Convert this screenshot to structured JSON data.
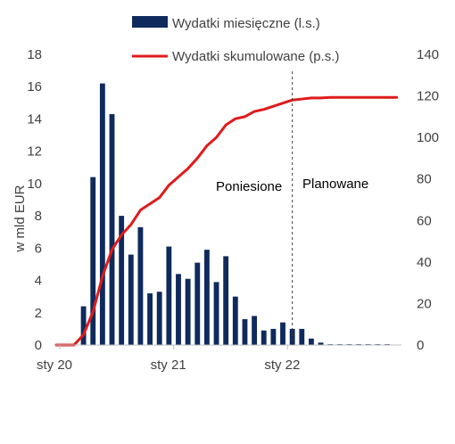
{
  "chart_data": {
    "type": "bar+line",
    "colors": {
      "bars": "#0f2a5c",
      "line": "#e01b1b",
      "axis": "#bfbfbf",
      "text": "#404040",
      "divider": "#404040"
    },
    "legend": [
      {
        "key": "bars",
        "label": "Wydatki miesięczne (l.s.)"
      },
      {
        "key": "line",
        "label": "Wydatki skumulowane (p.s.)"
      }
    ],
    "ylabel_left": "w mld EUR",
    "ylim_left": [
      0,
      18
    ],
    "yticks_left": [
      "0",
      "2",
      "4",
      "6",
      "8",
      "10",
      "12",
      "14",
      "16",
      "18"
    ],
    "ylim_right": [
      0,
      140
    ],
    "yticks_right": [
      "0",
      "20",
      "40",
      "60",
      "80",
      "100",
      "120",
      "140"
    ],
    "x_tick_labels": [
      {
        "label": "sty 20",
        "month_index": 0
      },
      {
        "label": "sty 21",
        "month_index": 12
      },
      {
        "label": "sty 22",
        "month_index": 24
      }
    ],
    "months_total": 36,
    "divider_month": 24.5,
    "annotations": {
      "left": "Poniesione",
      "right": "Planowane"
    },
    "series": [
      {
        "name": "Wydatki miesięczne (l.s.)",
        "kind": "bar",
        "values": [
          0,
          0,
          2.4,
          10.4,
          16.2,
          14.3,
          8.0,
          5.6,
          7.3,
          3.2,
          3.3,
          6.1,
          4.4,
          4.1,
          5.1,
          5.9,
          3.9,
          5.5,
          3.0,
          1.6,
          1.8,
          0.9,
          1.0,
          1.4,
          1.0,
          1.0,
          0.4,
          0.15,
          0.05,
          0.05,
          0.05,
          0.05,
          0.05,
          0.05,
          0.05,
          0
        ]
      },
      {
        "name": "Wydatki skumulowane (p.s.)",
        "kind": "line",
        "points": [
          [
            0,
            0
          ],
          [
            1,
            0
          ],
          [
            2,
            5
          ],
          [
            3,
            16
          ],
          [
            4,
            33
          ],
          [
            5,
            46
          ],
          [
            6,
            53
          ],
          [
            7,
            58
          ],
          [
            8,
            65
          ],
          [
            9,
            68
          ],
          [
            10,
            71
          ],
          [
            11,
            77
          ],
          [
            12,
            81
          ],
          [
            13,
            85
          ],
          [
            14,
            90
          ],
          [
            15,
            96
          ],
          [
            16,
            100
          ],
          [
            17,
            106
          ],
          [
            18,
            109
          ],
          [
            19,
            110
          ],
          [
            20,
            112.5
          ],
          [
            21,
            113.5
          ],
          [
            22,
            115
          ],
          [
            23,
            116.5
          ],
          [
            24,
            118
          ],
          [
            25,
            118.5
          ],
          [
            26,
            119
          ],
          [
            27,
            119
          ],
          [
            28,
            119.3
          ],
          [
            29,
            119.3
          ],
          [
            30,
            119.3
          ],
          [
            31,
            119.3
          ],
          [
            32,
            119.3
          ],
          [
            33,
            119.3
          ],
          [
            34,
            119.3
          ],
          [
            35,
            119.3
          ]
        ]
      }
    ]
  }
}
